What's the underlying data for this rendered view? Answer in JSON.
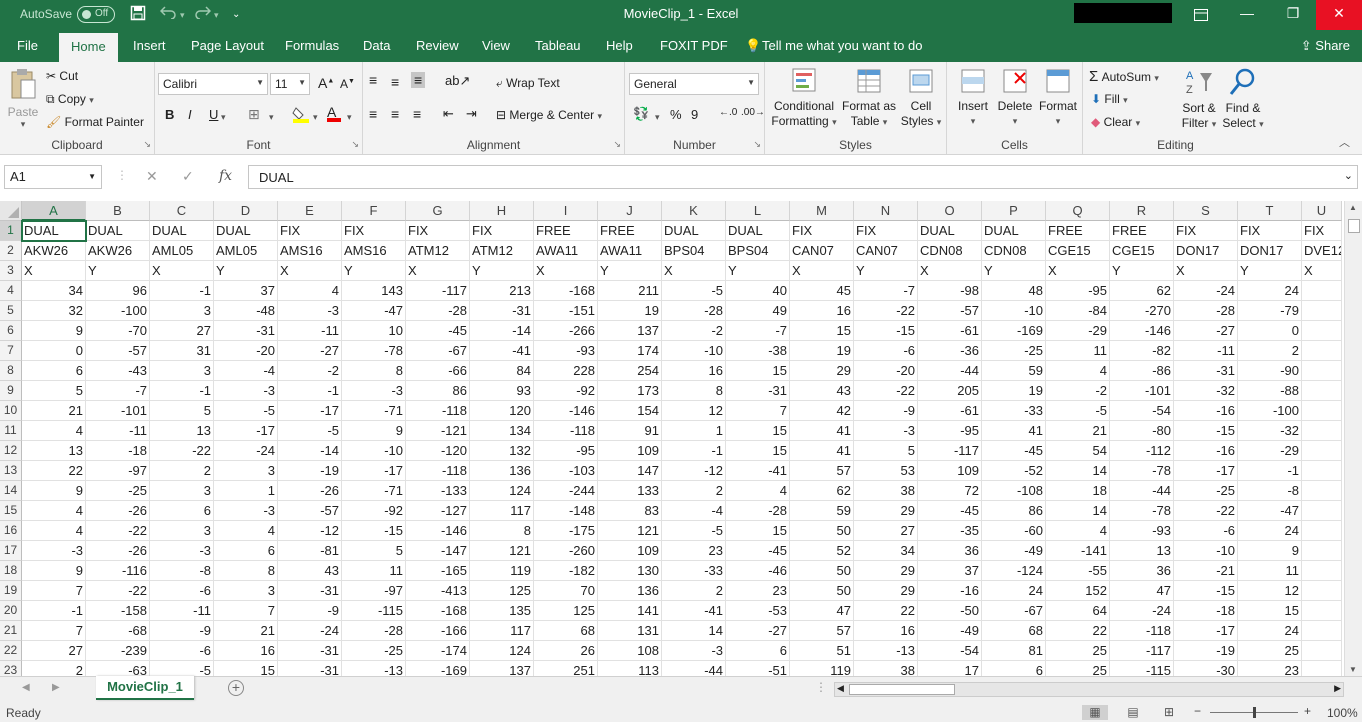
{
  "titlebar": {
    "autosave_label": "AutoSave",
    "autosave_state": "Off",
    "title": "MovieClip_1  -  Excel",
    "minimize_glyph": "—",
    "restore_glyph": "❐",
    "close_glyph": "✕"
  },
  "ribbon_tabs": [
    "File",
    "Home",
    "Insert",
    "Page Layout",
    "Formulas",
    "Data",
    "Review",
    "View",
    "Tableau",
    "Help",
    "FOXIT PDF",
    "Tell me what you want to do"
  ],
  "share_label": "Share",
  "clipboard": {
    "paste": "Paste",
    "cut": "Cut",
    "copy": "Copy",
    "format_painter": "Format Painter",
    "label": "Clipboard"
  },
  "font": {
    "name": "Calibri",
    "size": "11",
    "bold": "B",
    "italic": "I",
    "underline": "U",
    "label": "Font"
  },
  "alignment": {
    "wrap_text": "Wrap Text",
    "merge_center": "Merge & Center",
    "label": "Alignment"
  },
  "number": {
    "format": "General",
    "percent": "%",
    "comma": "9",
    "label": "Number"
  },
  "styles": {
    "conditional": [
      "Conditional",
      "Formatting"
    ],
    "format_table": [
      "Format as",
      "Table"
    ],
    "cell_styles": [
      "Cell",
      "Styles"
    ],
    "label": "Styles"
  },
  "cells": {
    "insert": "Insert",
    "delete": "Delete",
    "format": "Format",
    "label": "Cells"
  },
  "editing": {
    "autosum": "AutoSum",
    "fill": "Fill",
    "clear": "Clear",
    "sort_filter": [
      "Sort &",
      "Filter"
    ],
    "find_select": [
      "Find &",
      "Select"
    ],
    "label": "Editing"
  },
  "formula_bar": {
    "name_box": "A1",
    "fx": "fx",
    "cancel": "✕",
    "enter": "✓",
    "content": "DUAL"
  },
  "columns": [
    "A",
    "B",
    "C",
    "D",
    "E",
    "F",
    "G",
    "H",
    "I",
    "J",
    "K",
    "L",
    "M",
    "N",
    "O",
    "P",
    "Q",
    "R",
    "S",
    "T",
    "U"
  ],
  "rows": [
    {
      "n": "1",
      "cells": [
        "DUAL",
        "DUAL",
        "DUAL",
        "DUAL",
        "FIX",
        "FIX",
        "FIX",
        "FIX",
        "FREE",
        "FREE",
        "DUAL",
        "DUAL",
        "FIX",
        "FIX",
        "DUAL",
        "DUAL",
        "FREE",
        "FREE",
        "FIX",
        "FIX",
        "FIX"
      ]
    },
    {
      "n": "2",
      "cells": [
        "AKW26",
        "AKW26",
        "AML05",
        "AML05",
        "AMS16",
        "AMS16",
        "ATM12",
        "ATM12",
        "AWA11",
        "AWA11",
        "BPS04",
        "BPS04",
        "CAN07",
        "CAN07",
        "CDN08",
        "CDN08",
        "CGE15",
        "CGE15",
        "DON17",
        "DON17",
        "DVE12"
      ]
    },
    {
      "n": "3",
      "cells": [
        "X",
        "Y",
        "X",
        "Y",
        "X",
        "Y",
        "X",
        "Y",
        "X",
        "Y",
        "X",
        "Y",
        "X",
        "Y",
        "X",
        "Y",
        "X",
        "Y",
        "X",
        "Y",
        "X"
      ]
    },
    {
      "n": "4",
      "cells": [
        "34",
        "96",
        "-1",
        "37",
        "4",
        "143",
        "-117",
        "213",
        "-168",
        "211",
        "-5",
        "40",
        "45",
        "-7",
        "-98",
        "48",
        "-95",
        "62",
        "-24",
        "24",
        ""
      ]
    },
    {
      "n": "5",
      "cells": [
        "32",
        "-100",
        "3",
        "-48",
        "-3",
        "-47",
        "-28",
        "-31",
        "-151",
        "19",
        "-28",
        "49",
        "16",
        "-22",
        "-57",
        "-10",
        "-84",
        "-270",
        "-28",
        "-79",
        ""
      ]
    },
    {
      "n": "6",
      "cells": [
        "9",
        "-70",
        "27",
        "-31",
        "-11",
        "10",
        "-45",
        "-14",
        "-266",
        "137",
        "-2",
        "-7",
        "15",
        "-15",
        "-61",
        "-169",
        "-29",
        "-146",
        "-27",
        "0",
        ""
      ]
    },
    {
      "n": "7",
      "cells": [
        "0",
        "-57",
        "31",
        "-20",
        "-27",
        "-78",
        "-67",
        "-41",
        "-93",
        "174",
        "-10",
        "-38",
        "19",
        "-6",
        "-36",
        "-25",
        "11",
        "-82",
        "-11",
        "2",
        ""
      ]
    },
    {
      "n": "8",
      "cells": [
        "6",
        "-43",
        "3",
        "-4",
        "-2",
        "8",
        "-66",
        "84",
        "228",
        "254",
        "16",
        "15",
        "29",
        "-20",
        "-44",
        "59",
        "4",
        "-86",
        "-31",
        "-90",
        ""
      ]
    },
    {
      "n": "9",
      "cells": [
        "5",
        "-7",
        "-1",
        "-3",
        "-1",
        "-3",
        "86",
        "93",
        "-92",
        "173",
        "8",
        "-31",
        "43",
        "-22",
        "205",
        "19",
        "-2",
        "-101",
        "-32",
        "-88",
        ""
      ]
    },
    {
      "n": "10",
      "cells": [
        "21",
        "-101",
        "5",
        "-5",
        "-17",
        "-71",
        "-118",
        "120",
        "-146",
        "154",
        "12",
        "7",
        "42",
        "-9",
        "-61",
        "-33",
        "-5",
        "-54",
        "-16",
        "-100",
        ""
      ]
    },
    {
      "n": "11",
      "cells": [
        "4",
        "-11",
        "13",
        "-17",
        "-5",
        "9",
        "-121",
        "134",
        "-118",
        "91",
        "1",
        "15",
        "41",
        "-3",
        "-95",
        "41",
        "21",
        "-80",
        "-15",
        "-32",
        ""
      ]
    },
    {
      "n": "12",
      "cells": [
        "13",
        "-18",
        "-22",
        "-24",
        "-14",
        "-10",
        "-120",
        "132",
        "-95",
        "109",
        "-1",
        "15",
        "41",
        "5",
        "-117",
        "-45",
        "54",
        "-112",
        "-16",
        "-29",
        ""
      ]
    },
    {
      "n": "13",
      "cells": [
        "22",
        "-97",
        "2",
        "3",
        "-19",
        "-17",
        "-118",
        "136",
        "-103",
        "147",
        "-12",
        "-41",
        "57",
        "53",
        "109",
        "-52",
        "14",
        "-78",
        "-17",
        "-1",
        ""
      ]
    },
    {
      "n": "14",
      "cells": [
        "9",
        "-25",
        "3",
        "1",
        "-26",
        "-71",
        "-133",
        "124",
        "-244",
        "133",
        "2",
        "4",
        "62",
        "38",
        "72",
        "-108",
        "18",
        "-44",
        "-25",
        "-8",
        ""
      ]
    },
    {
      "n": "15",
      "cells": [
        "4",
        "-26",
        "6",
        "-3",
        "-57",
        "-92",
        "-127",
        "117",
        "-148",
        "83",
        "-4",
        "-28",
        "59",
        "29",
        "-45",
        "86",
        "14",
        "-78",
        "-22",
        "-47",
        ""
      ]
    },
    {
      "n": "16",
      "cells": [
        "4",
        "-22",
        "3",
        "4",
        "-12",
        "-15",
        "-146",
        "8",
        "-175",
        "121",
        "-5",
        "15",
        "50",
        "27",
        "-35",
        "-60",
        "4",
        "-93",
        "-6",
        "24",
        ""
      ]
    },
    {
      "n": "17",
      "cells": [
        "-3",
        "-26",
        "-3",
        "6",
        "-81",
        "5",
        "-147",
        "121",
        "-260",
        "109",
        "23",
        "-45",
        "52",
        "34",
        "36",
        "-49",
        "-141",
        "13",
        "-10",
        "9",
        ""
      ]
    },
    {
      "n": "18",
      "cells": [
        "9",
        "-116",
        "-8",
        "8",
        "43",
        "11",
        "-165",
        "119",
        "-182",
        "130",
        "-33",
        "-46",
        "50",
        "29",
        "37",
        "-124",
        "-55",
        "36",
        "-21",
        "11",
        ""
      ]
    },
    {
      "n": "19",
      "cells": [
        "7",
        "-22",
        "-6",
        "3",
        "-31",
        "-97",
        "-413",
        "125",
        "70",
        "136",
        "2",
        "23",
        "50",
        "29",
        "-16",
        "24",
        "152",
        "47",
        "-15",
        "12",
        ""
      ]
    },
    {
      "n": "20",
      "cells": [
        "-1",
        "-158",
        "-11",
        "7",
        "-9",
        "-115",
        "-168",
        "135",
        "125",
        "141",
        "-41",
        "-53",
        "47",
        "22",
        "-50",
        "-67",
        "64",
        "-24",
        "-18",
        "15",
        ""
      ]
    },
    {
      "n": "21",
      "cells": [
        "7",
        "-68",
        "-9",
        "21",
        "-24",
        "-28",
        "-166",
        "117",
        "68",
        "131",
        "14",
        "-27",
        "57",
        "16",
        "-49",
        "68",
        "22",
        "-118",
        "-17",
        "24",
        ""
      ]
    },
    {
      "n": "22",
      "cells": [
        "27",
        "-239",
        "-6",
        "16",
        "-31",
        "-25",
        "-174",
        "124",
        "26",
        "108",
        "-3",
        "6",
        "51",
        "-13",
        "-54",
        "81",
        "25",
        "-117",
        "-19",
        "25",
        ""
      ]
    },
    {
      "n": "23",
      "cells": [
        "2",
        "-63",
        "-5",
        "15",
        "-31",
        "-13",
        "-169",
        "137",
        "251",
        "113",
        "-44",
        "-51",
        "119",
        "38",
        "17",
        "6",
        "25",
        "-115",
        "-30",
        "23",
        ""
      ]
    }
  ],
  "sheet_tab": "MovieClip_1",
  "status": {
    "ready": "Ready",
    "zoom": "100%"
  },
  "colors": {
    "brand": "#217346",
    "close_red": "#e81123"
  }
}
